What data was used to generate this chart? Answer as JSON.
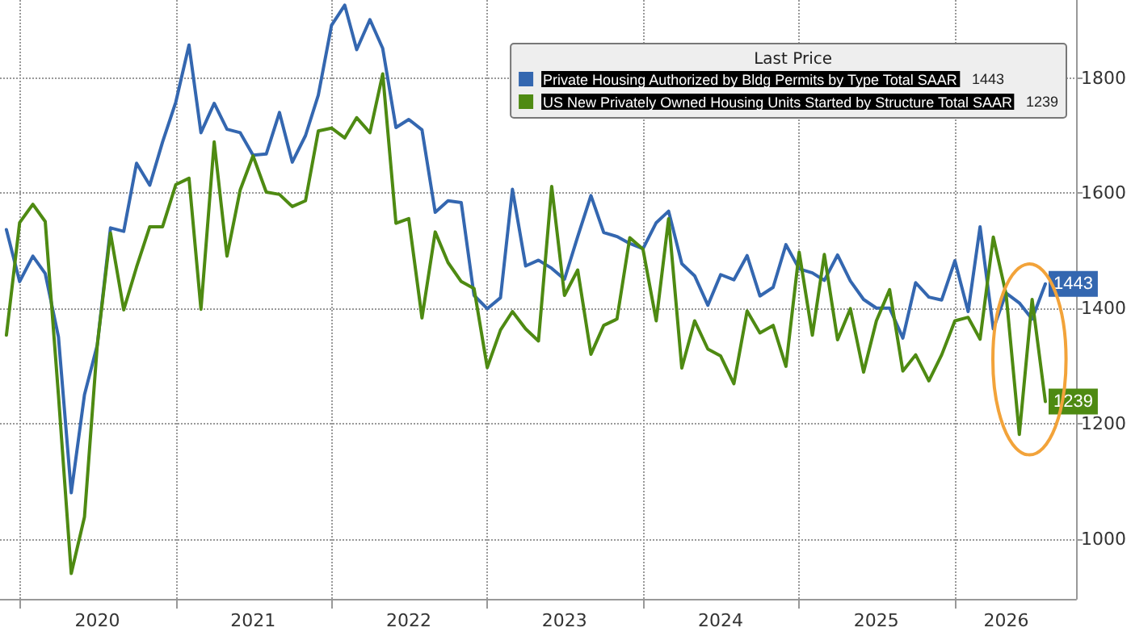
{
  "chart_data": {
    "type": "line",
    "legend_title": "Last Price",
    "x": [
      "2019-12",
      "2020-01",
      "2020-02",
      "2020-03",
      "2020-04",
      "2020-05",
      "2020-06",
      "2020-07",
      "2020-08",
      "2020-09",
      "2020-10",
      "2020-11",
      "2020-12",
      "2021-01",
      "2021-02",
      "2021-03",
      "2021-04",
      "2021-05",
      "2021-06",
      "2021-07",
      "2021-08",
      "2021-09",
      "2021-10",
      "2021-11",
      "2021-12",
      "2022-01",
      "2022-02",
      "2022-03",
      "2022-04",
      "2022-05",
      "2022-06",
      "2022-07",
      "2022-08",
      "2022-09",
      "2022-10",
      "2022-11",
      "2022-12",
      "2023-01",
      "2023-02",
      "2023-03",
      "2023-04",
      "2023-05",
      "2023-06",
      "2023-07",
      "2023-08",
      "2023-09",
      "2023-10",
      "2023-11",
      "2023-12",
      "2024-01",
      "2024-02",
      "2024-03",
      "2024-04",
      "2024-05",
      "2024-06",
      "2024-07",
      "2024-08",
      "2024-09",
      "2024-10",
      "2024-11",
      "2024-12",
      "2025-01",
      "2025-02",
      "2025-03",
      "2025-04",
      "2025-05",
      "2025-06",
      "2025-07",
      "2025-08",
      "2025-09",
      "2025-10",
      "2025-11",
      "2025-12",
      "2026-01",
      "2026-02",
      "2026-03",
      "2026-04",
      "2026-05",
      "2026-06",
      "2026-07",
      "2026-08"
    ],
    "series": [
      {
        "name": "Private Housing Authorized by Bldg Permits by Type Total SAAR",
        "color": "#3467b0",
        "values": [
          1537,
          1447,
          1491,
          1461,
          1351,
          1081,
          1251,
          1337,
          1540,
          1534,
          1652,
          1614,
          1689,
          1758,
          1857,
          1705,
          1756,
          1711,
          1705,
          1666,
          1668,
          1740,
          1654,
          1700,
          1770,
          1891,
          1926,
          1849,
          1901,
          1851,
          1714,
          1728,
          1710,
          1567,
          1587,
          1584,
          1423,
          1400,
          1419,
          1607,
          1474,
          1484,
          1470,
          1451,
          1525,
          1596,
          1532,
          1525,
          1513,
          1504,
          1549,
          1569,
          1478,
          1457,
          1406,
          1459,
          1450,
          1492,
          1422,
          1437,
          1511,
          1469,
          1462,
          1449,
          1493,
          1448,
          1416,
          1401,
          1401,
          1349,
          1445,
          1420,
          1415,
          1483,
          1395,
          1542,
          1365,
          1427,
          1410,
          1382,
          1443
        ],
        "value_labels": [
          null,
          null,
          null,
          null,
          null,
          null,
          null,
          null,
          null,
          null,
          null,
          null,
          null,
          null,
          null,
          null,
          null,
          null,
          null,
          null,
          null,
          null,
          null,
          null,
          null,
          null,
          null,
          null,
          null,
          null,
          null,
          null,
          null,
          null,
          null,
          null,
          null,
          null,
          null,
          null,
          null,
          null,
          null,
          null,
          null,
          null,
          null,
          null,
          null,
          null,
          null,
          null,
          null,
          null,
          null,
          null,
          null,
          null,
          null,
          null,
          null,
          null,
          null,
          null,
          null,
          null,
          null,
          null,
          null,
          null,
          null,
          null,
          null,
          null,
          null,
          null,
          null,
          null,
          null,
          null,
          "1443"
        ]
      },
      {
        "name": "US New Privately Owned Housing Units Started by Structure Total SAAR",
        "color": "#4e8a12",
        "values": [
          1354,
          1549,
          1581,
          1551,
          1250,
          941,
          1039,
          1337,
          1531,
          1398,
          1472,
          1542,
          1542,
          1615,
          1626,
          1399,
          1689,
          1491,
          1606,
          1665,
          1602,
          1598,
          1577,
          1587,
          1708,
          1713,
          1696,
          1731,
          1705,
          1807,
          1548,
          1556,
          1384,
          1533,
          1480,
          1447,
          1435,
          1298,
          1363,
          1395,
          1365,
          1344,
          1612,
          1423,
          1467,
          1321,
          1371,
          1382,
          1523,
          1503,
          1379,
          1556,
          1297,
          1379,
          1330,
          1318,
          1270,
          1396,
          1358,
          1371,
          1300,
          1498,
          1354,
          1494,
          1346,
          1400,
          1290,
          1379,
          1433,
          1292,
          1320,
          1275,
          1320,
          1379,
          1385,
          1347,
          1524,
          1425,
          1182,
          1416,
          1239
        ],
        "value_labels": [
          null,
          null,
          null,
          null,
          null,
          null,
          null,
          null,
          null,
          null,
          null,
          null,
          null,
          null,
          null,
          null,
          null,
          null,
          null,
          null,
          null,
          null,
          null,
          null,
          null,
          null,
          null,
          null,
          null,
          null,
          null,
          null,
          null,
          null,
          null,
          null,
          null,
          null,
          null,
          null,
          null,
          null,
          null,
          null,
          null,
          null,
          null,
          null,
          null,
          null,
          null,
          null,
          null,
          null,
          null,
          null,
          null,
          null,
          null,
          null,
          null,
          null,
          null,
          null,
          null,
          null,
          null,
          null,
          null,
          null,
          null,
          null,
          null,
          null,
          null,
          null,
          null,
          null,
          null,
          null,
          "1239"
        ]
      }
    ],
    "xlim": [
      "2019-11-16",
      "2026-10-12"
    ],
    "xticks": [
      {
        "value": "2020-01-01",
        "label": null
      },
      {
        "value": "2020-07-01",
        "label": "2020"
      },
      {
        "value": "2021-01-01",
        "label": null
      },
      {
        "value": "2021-07-01",
        "label": "2021"
      },
      {
        "value": "2022-01-01",
        "label": null
      },
      {
        "value": "2022-07-01",
        "label": "2022"
      },
      {
        "value": "2023-01-01",
        "label": null
      },
      {
        "value": "2023-07-01",
        "label": "2023"
      },
      {
        "value": "2024-01-01",
        "label": null
      },
      {
        "value": "2024-07-01",
        "label": "2024"
      },
      {
        "value": "2025-01-01",
        "label": null
      },
      {
        "value": "2025-07-01",
        "label": "2025"
      },
      {
        "value": "2026-01-01",
        "label": null
      },
      {
        "value": "2026-05-01",
        "label": "2026"
      }
    ],
    "ylim": [
      897,
      1935
    ],
    "yticks": [
      1000,
      1200,
      1400,
      1600,
      1800
    ],
    "grid": true,
    "legend": "top right",
    "marker": "none",
    "line_style": "solid"
  }
}
